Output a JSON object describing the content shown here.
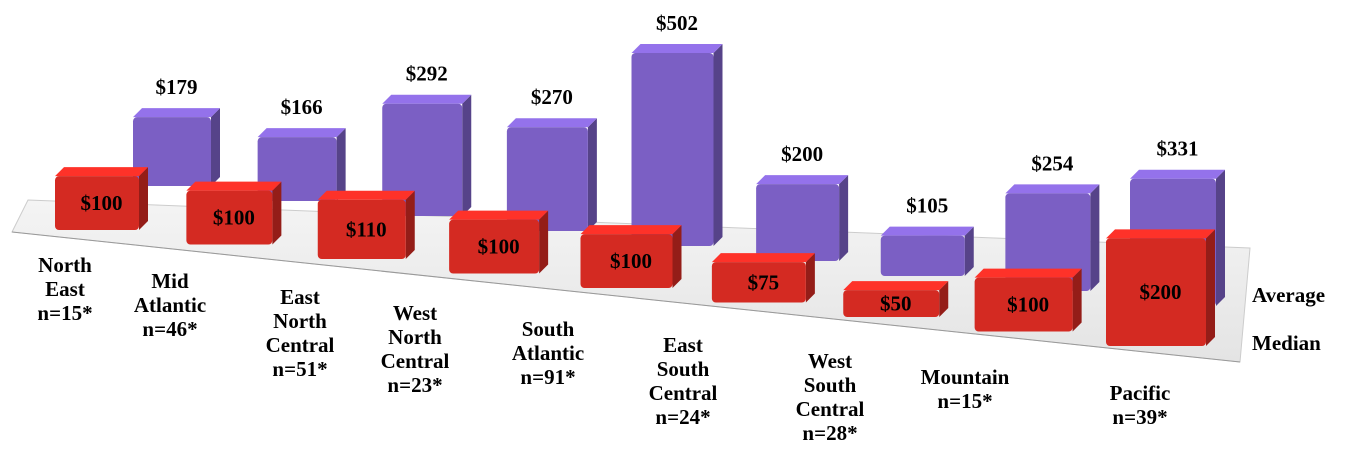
{
  "chart_data": {
    "type": "bar3d",
    "categories": [
      "North\nEast\nn=15*",
      "Mid\nAtlantic\nn=46*",
      "East\nNorth\nCentral\nn=51*",
      "West\nNorth\nCentral\nn=23*",
      "South\nAtlantic\nn=91*",
      "East\nSouth\nCentral\nn=24*",
      "West\nSouth\nCentral\nn=28*",
      "Mountain\nn=15*",
      "Pacific\nn=39*"
    ],
    "series": [
      {
        "name": "Average",
        "color": "#7b5fc4",
        "values": [
          179,
          166,
          292,
          270,
          502,
          200,
          105,
          254,
          331
        ],
        "value_labels": [
          "$179",
          "$166",
          "$292",
          "$270",
          "$502",
          "$200",
          "$105",
          "$254",
          "$331"
        ]
      },
      {
        "name": "Median",
        "color": "#d42a22",
        "values": [
          100,
          100,
          110,
          100,
          100,
          75,
          50,
          100,
          200
        ],
        "value_labels": [
          "$100",
          "$100",
          "$110",
          "$100",
          "$100",
          "$75",
          "$50",
          "$100",
          "$200"
        ]
      }
    ]
  }
}
